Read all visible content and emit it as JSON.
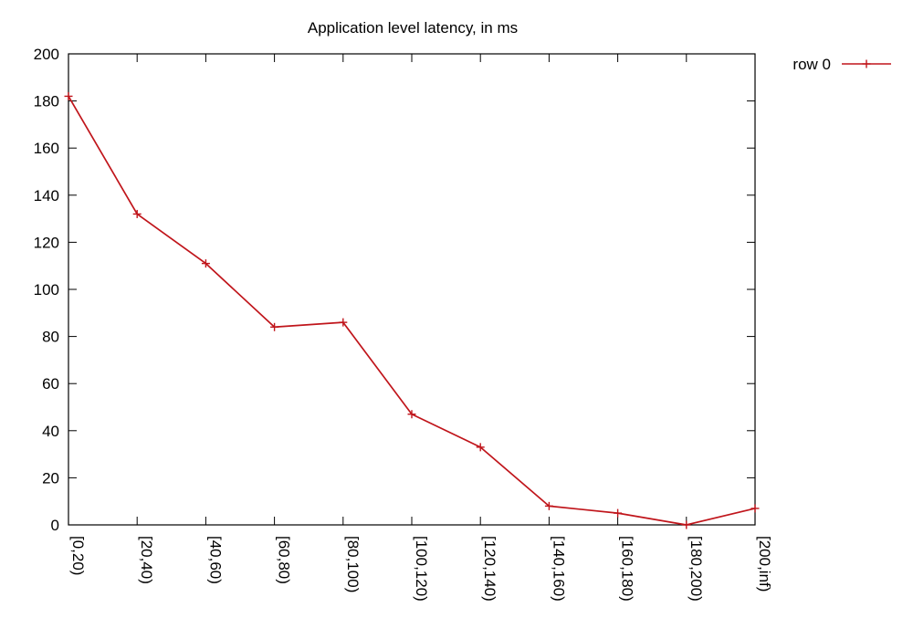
{
  "chart_data": {
    "type": "line",
    "title": "Application level latency, in ms",
    "xlabel": "",
    "ylabel": "",
    "categories": [
      "[0,20)",
      "[20,40)",
      "[40,60)",
      "[60,80)",
      "[80,100)",
      "[100,120)",
      "[120,140)",
      "[140,160)",
      "[160,180)",
      "[180,200)",
      "[200,inf)"
    ],
    "ylim": [
      0,
      200
    ],
    "yticks": [
      0,
      20,
      40,
      60,
      80,
      100,
      120,
      140,
      160,
      180,
      200
    ],
    "grid": false,
    "legend_position": "top-right, outside plot",
    "series": [
      {
        "name": "row 0",
        "color": "#c0151b",
        "marker": "plus",
        "values": [
          182,
          132,
          111,
          84,
          86,
          47,
          33,
          8,
          5,
          0,
          7
        ]
      }
    ]
  }
}
